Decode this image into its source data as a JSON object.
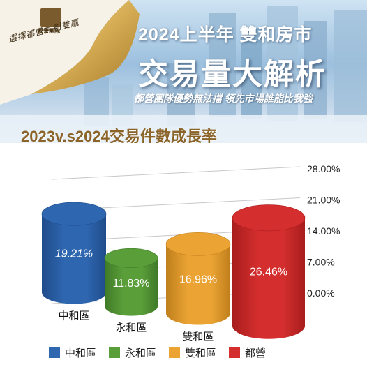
{
  "header": {
    "logo_name": "都營團隊",
    "slogan": "選擇都營共創雙贏",
    "title_line1": "2024上半年 雙和房市",
    "title_line2": "交易量大解析",
    "subtitle": "都營團隊優勢無法擋  領先市場誰能比我強"
  },
  "chart_data": {
    "type": "bar",
    "title": "2023v.s2024交易件數成長率",
    "categories": [
      "中和區",
      "永和區",
      "雙和區",
      "都營"
    ],
    "values": [
      19.21,
      11.83,
      16.96,
      26.46
    ],
    "value_labels": [
      "19.21%",
      "11.83%",
      "16.96%",
      "26.46%"
    ],
    "ylim": [
      0,
      28
    ],
    "yticks": [
      "28.00%",
      "21.00%",
      "14.00%",
      "7.00%",
      "0.00%"
    ],
    "grid": true,
    "legend_position": "bottom",
    "series_colors": [
      "#2e66b0",
      "#5a9e3a",
      "#eba434",
      "#d42e2e"
    ],
    "legend": [
      "中和區",
      "永和區",
      "雙和區",
      "都營"
    ]
  }
}
